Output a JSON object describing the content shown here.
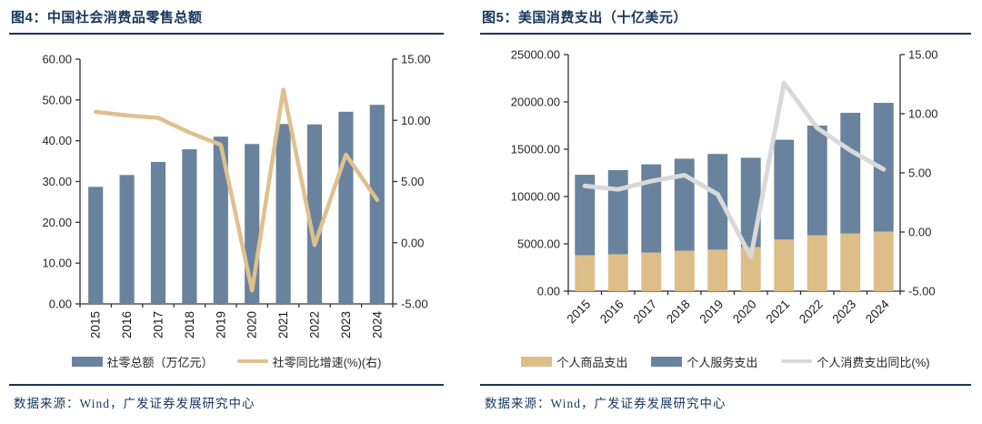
{
  "page": {
    "background": "#ffffff"
  },
  "colors": {
    "navy_rule_and_text": "#17365d",
    "bar_blue": "#69839e",
    "bar_tan": "#ddbd88",
    "line_tan": "#dfc08e",
    "line_gray": "#d9d9d9",
    "axis_tick": "#333333",
    "axis_text": "#262626"
  },
  "chart_data": [
    {
      "type": "bar",
      "title": "图4：中国社会消费品零售总额",
      "categories": [
        "2015",
        "2016",
        "2017",
        "2018",
        "2019",
        "2020",
        "2021",
        "2022",
        "2023",
        "2024"
      ],
      "series": [
        {
          "name": "社零总额（万亿元）",
          "type": "bar",
          "axis": "left",
          "color": "#69839e",
          "values": [
            28.7,
            31.6,
            34.8,
            37.9,
            41.0,
            39.2,
            44.1,
            44.0,
            47.1,
            48.8
          ]
        },
        {
          "name": "社零同比增速(%)(右)",
          "type": "line",
          "axis": "right",
          "color": "#dfc08e",
          "width": 4.5,
          "values": [
            10.7,
            10.4,
            10.2,
            9.0,
            8.0,
            -3.9,
            12.5,
            -0.2,
            7.2,
            3.5
          ]
        }
      ],
      "left_axis": {
        "min": 0,
        "max": 60,
        "step": 10,
        "ticks": [
          "0.00",
          "10.00",
          "20.00",
          "30.00",
          "40.00",
          "50.00",
          "60.00"
        ]
      },
      "right_axis": {
        "min": -5,
        "max": 15,
        "step": 5,
        "ticks": [
          "-5.00",
          "0.00",
          "5.00",
          "10.00",
          "15.00"
        ]
      },
      "x_label_rotation": -90,
      "grid": false,
      "legend_position": "bottom"
    },
    {
      "type": "stacked-bar",
      "title": "图5：美国消费支出（十亿美元）",
      "categories": [
        "2015",
        "2016",
        "2017",
        "2018",
        "2019",
        "2020",
        "2021",
        "2022",
        "2023",
        "2024"
      ],
      "series": [
        {
          "name": "个人商品支出",
          "type": "bar",
          "stack": true,
          "axis": "left",
          "color": "#ddbd88",
          "values": [
            3800,
            3900,
            4080,
            4280,
            4390,
            4650,
            5450,
            5900,
            6100,
            6300
          ]
        },
        {
          "name": "个人服务支出",
          "type": "bar",
          "stack": true,
          "axis": "left",
          "color": "#69839e",
          "values": [
            8500,
            8900,
            9320,
            9720,
            10110,
            9450,
            10550,
            11600,
            12750,
            13600
          ]
        },
        {
          "name": "个人消费支出同比(%)",
          "type": "line",
          "axis": "right",
          "color": "#d9d9d9",
          "width": 5,
          "values": [
            3.9,
            3.6,
            4.3,
            4.8,
            3.2,
            -2.1,
            12.6,
            8.8,
            6.9,
            5.3
          ]
        }
      ],
      "left_axis": {
        "min": 0,
        "max": 25000,
        "step": 5000,
        "ticks": [
          "0.00",
          "5000.00",
          "10000.00",
          "15000.00",
          "20000.00",
          "25000.00"
        ]
      },
      "right_axis": {
        "min": -5,
        "max": 15,
        "step": 5,
        "ticks": [
          "-5.00",
          "0.00",
          "5.00",
          "10.00",
          "15.00"
        ]
      },
      "x_label_rotation": -45,
      "grid": false,
      "legend_position": "bottom"
    }
  ],
  "figures": [
    {
      "source": "数据来源：Wind，广发证券发展研究中心"
    },
    {
      "source": "数据来源：Wind，广发证券发展研究中心"
    }
  ]
}
